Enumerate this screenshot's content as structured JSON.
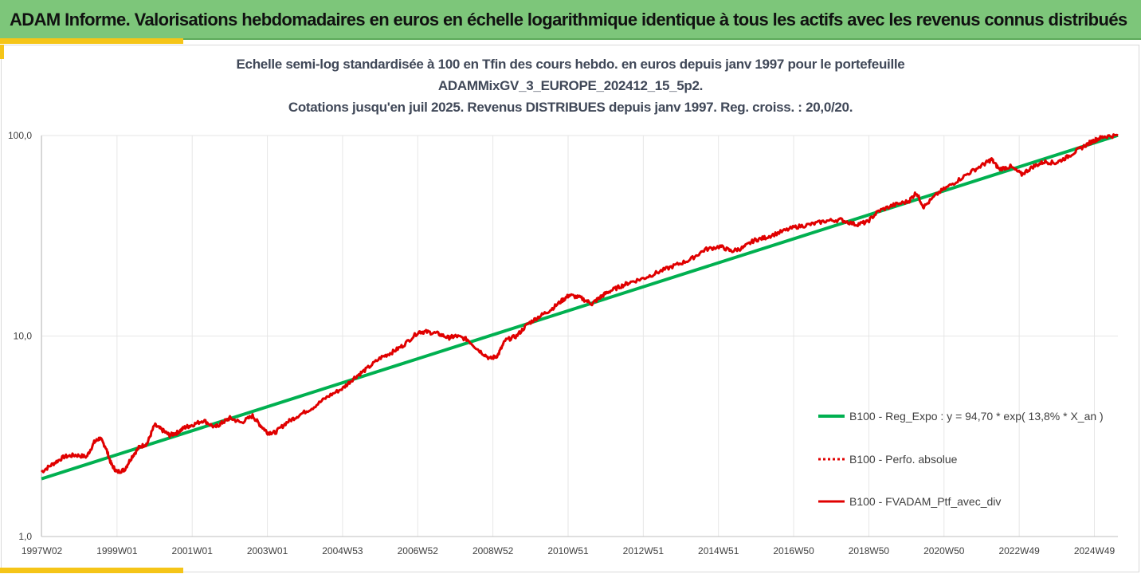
{
  "banner": {
    "title": "ADAM Informe. Valorisations hebdomadaires en euros en échelle logarithmique identique à tous les actifs avec les revenus connus distribués"
  },
  "colors": {
    "banner": "#7dc67a",
    "accent": "#f5c518",
    "regression": "#00b050",
    "portfolio": "#e00000",
    "grid": "#e6e6e6",
    "title_text": "#404858"
  },
  "chart_data": {
    "type": "line",
    "title_lines": [
      "Echelle semi-log standardisée à 100 en Tfin des cours hebdo.  en euros depuis janv 1997 pour le portefeuille",
      "ADAMMixGV_3_EUROPE_202412_15_5p2.",
      "Cotations  jusqu'en juil 2025. Revenus DISTRIBUES depuis janv 1997. Reg. croiss. : 20,0/20."
    ],
    "y_scale": "log",
    "ylim": [
      1,
      100
    ],
    "y_ticks": [
      "1,0",
      "10,0",
      "100,0"
    ],
    "x_ticks": [
      "1997W02",
      "1999W01",
      "2001W01",
      "2003W01",
      "2004W53",
      "2006W52",
      "2008W52",
      "2010W51",
      "2012W51",
      "2014W51",
      "2016W50",
      "2018W50",
      "2020W50",
      "2022W49",
      "2024W49"
    ],
    "xlim": [
      1997.0,
      2025.55
    ],
    "grid": "vertical lines at each x tick, horizontal at y ticks",
    "legend_position": "right",
    "series": [
      {
        "name": "B100 - Reg_Expo : y = 94,70 * exp( 13,8% *  X_an )",
        "style": "solid-thick",
        "x": [
          1997.0,
          2025.55
        ],
        "y": [
          1.94,
          100.2
        ]
      },
      {
        "name": "B100 - Perfo. absolue",
        "style": "dotted",
        "x": [],
        "y": []
      },
      {
        "name": "B100 - FVADAM_Ptf_avec_div",
        "style": "solid",
        "x": [
          1997.0,
          1997.3,
          1997.6,
          1997.9,
          1998.2,
          1998.4,
          1998.55,
          1998.7,
          1998.85,
          1999.0,
          1999.2,
          1999.4,
          1999.6,
          1999.8,
          2000.0,
          2000.2,
          2000.4,
          2000.6,
          2000.8,
          2001.0,
          2001.3,
          2001.6,
          2001.8,
          2002.0,
          2002.3,
          2002.6,
          2002.8,
          2003.0,
          2003.2,
          2003.5,
          2003.8,
          2004.2,
          2004.6,
          2005.0,
          2005.3,
          2005.6,
          2006.0,
          2006.3,
          2006.6,
          2007.0,
          2007.2,
          2007.5,
          2007.8,
          2008.0,
          2008.3,
          2008.6,
          2008.9,
          2009.1,
          2009.3,
          2009.6,
          2009.9,
          2010.2,
          2010.5,
          2010.8,
          2011.0,
          2011.3,
          2011.6,
          2011.8,
          2012.0,
          2012.3,
          2012.6,
          2013.0,
          2013.4,
          2013.8,
          2014.2,
          2014.6,
          2015.0,
          2015.3,
          2015.6,
          2015.9,
          2016.2,
          2016.6,
          2017.0,
          2017.4,
          2017.8,
          2018.2,
          2018.6,
          2018.9,
          2019.2,
          2019.6,
          2020.0,
          2020.2,
          2020.4,
          2020.8,
          2021.2,
          2021.6,
          2022.0,
          2022.2,
          2022.4,
          2022.7,
          2023.0,
          2023.3,
          2023.6,
          2023.9,
          2024.2,
          2024.5,
          2024.8,
          2025.0,
          2025.2,
          2025.55
        ],
        "y": [
          2.1,
          2.3,
          2.5,
          2.55,
          2.5,
          2.95,
          3.1,
          2.8,
          2.3,
          2.1,
          2.15,
          2.5,
          2.8,
          2.9,
          3.6,
          3.4,
          3.2,
          3.3,
          3.5,
          3.6,
          3.8,
          3.5,
          3.7,
          3.9,
          3.7,
          4.0,
          3.6,
          3.3,
          3.3,
          3.7,
          4.0,
          4.4,
          5.0,
          5.5,
          6.2,
          6.8,
          7.8,
          8.3,
          9.0,
          10.5,
          10.5,
          10.3,
          9.8,
          10.0,
          9.6,
          8.5,
          7.7,
          8.0,
          9.5,
          10.0,
          11.5,
          12.5,
          13.5,
          15.0,
          16.0,
          15.5,
          14.5,
          15.5,
          16.5,
          17.5,
          18.5,
          19.5,
          21.0,
          22.5,
          24.0,
          27.0,
          28.0,
          26.5,
          27.5,
          30.0,
          31.0,
          33.0,
          35.0,
          36.0,
          37.5,
          38.0,
          36.0,
          37.0,
          42.0,
          45.0,
          47.0,
          52.0,
          44.0,
          52.0,
          58.0,
          65.0,
          72.0,
          76.0,
          68.0,
          70.0,
          64.0,
          70.0,
          74.0,
          73.0,
          78.0,
          85.0,
          92.0,
          96.0,
          99.0,
          100.0
        ]
      }
    ]
  }
}
